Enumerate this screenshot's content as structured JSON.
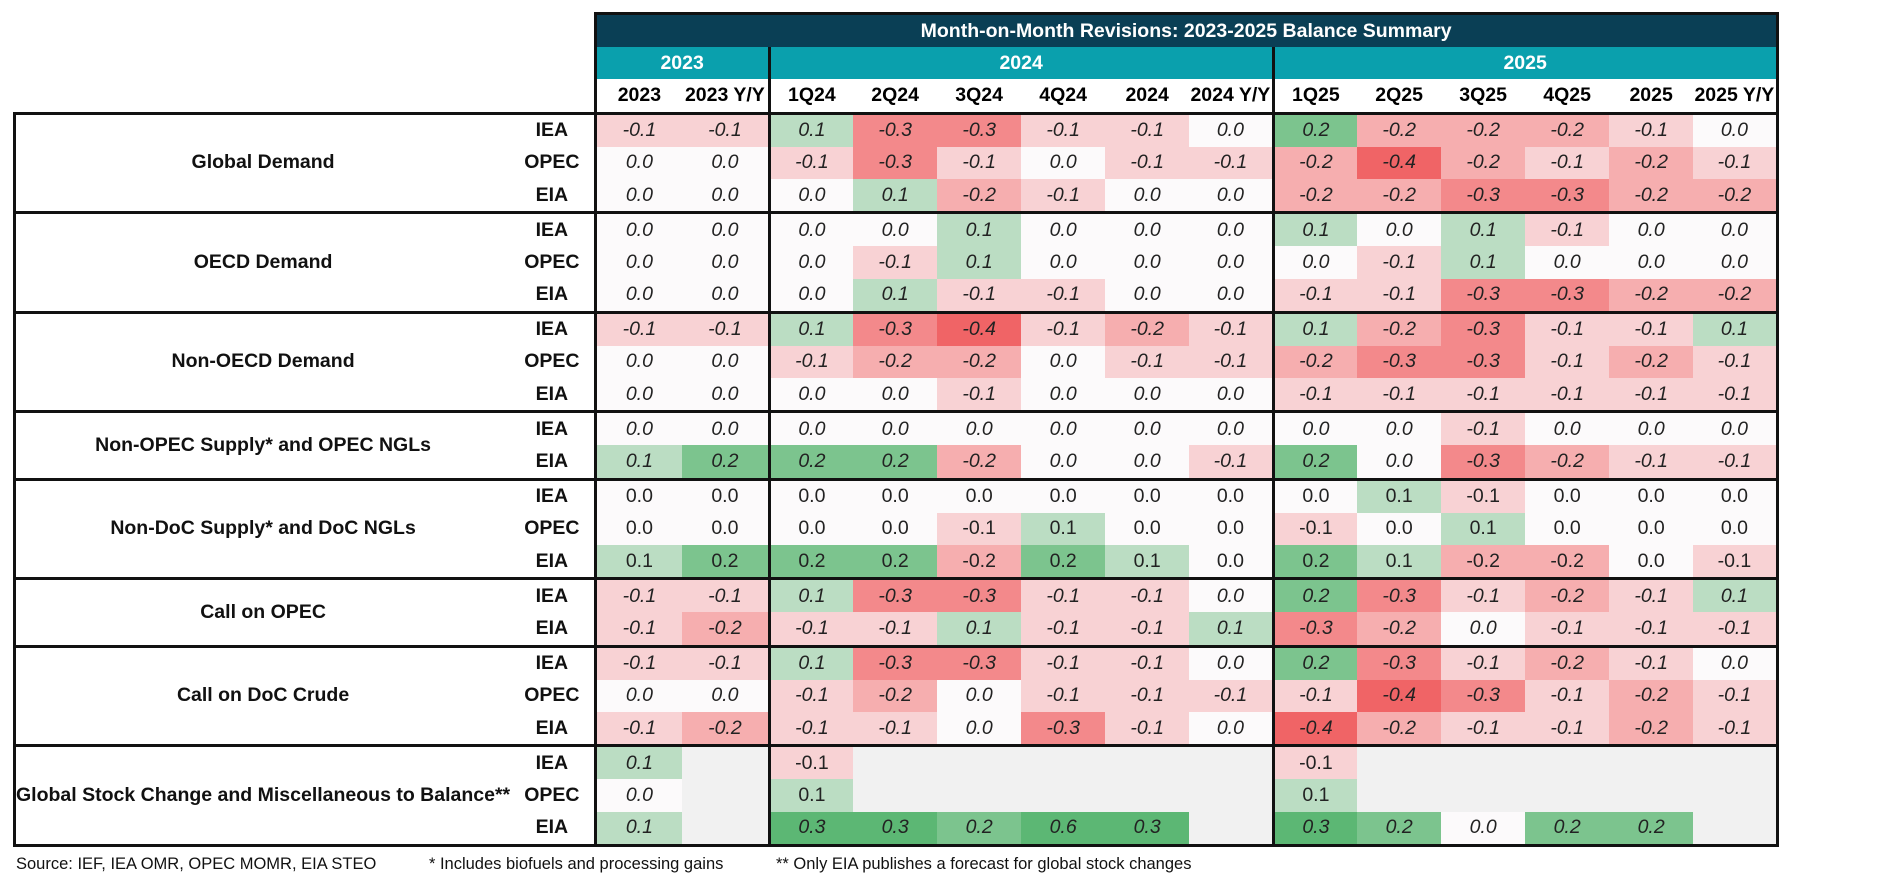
{
  "title": "Month-on-Month Revisions: 2023-2025 Balance Summary",
  "year_groups": [
    "2023",
    "2024",
    "2025"
  ],
  "columns": [
    "2023",
    "2023 Y/Y",
    "1Q24",
    "2Q24",
    "3Q24",
    "4Q24",
    "2024",
    "2024 Y/Y",
    "1Q25",
    "2Q25",
    "3Q25",
    "4Q25",
    "2025",
    "2025 Y/Y"
  ],
  "colors": {
    "title_bg": "#0a3f55",
    "year_bg": "#0aa0ad",
    "positive": "#5cb774",
    "negative": "#f06466",
    "neutral": "#ffffff",
    "empty": "#f1f1f1"
  },
  "metrics": [
    {
      "label": "Global Demand",
      "rows": [
        {
          "source": "IEA",
          "values": [
            "-0.1",
            "-0.1",
            "0.1",
            "-0.3",
            "-0.3",
            "-0.1",
            "-0.1",
            "0.0",
            "0.2",
            "-0.2",
            "-0.2",
            "-0.2",
            "-0.1",
            "0.0"
          ]
        },
        {
          "source": "OPEC",
          "values": [
            "0.0",
            "0.0",
            "-0.1",
            "-0.3",
            "-0.1",
            "0.0",
            "-0.1",
            "-0.1",
            "-0.2",
            "-0.4",
            "-0.2",
            "-0.1",
            "-0.2",
            "-0.1"
          ]
        },
        {
          "source": "EIA",
          "values": [
            "0.0",
            "0.0",
            "0.0",
            "0.1",
            "-0.2",
            "-0.1",
            "0.0",
            "0.0",
            "-0.2",
            "-0.2",
            "-0.3",
            "-0.3",
            "-0.2",
            "-0.2"
          ]
        }
      ]
    },
    {
      "label": "OECD Demand",
      "rows": [
        {
          "source": "IEA",
          "values": [
            "0.0",
            "0.0",
            "0.0",
            "0.0",
            "0.1",
            "0.0",
            "0.0",
            "0.0",
            "0.1",
            "0.0",
            "0.1",
            "-0.1",
            "0.0",
            "0.0"
          ]
        },
        {
          "source": "OPEC",
          "values": [
            "0.0",
            "0.0",
            "0.0",
            "-0.1",
            "0.1",
            "0.0",
            "0.0",
            "0.0",
            "0.0",
            "-0.1",
            "0.1",
            "0.0",
            "0.0",
            "0.0"
          ]
        },
        {
          "source": "EIA",
          "values": [
            "0.0",
            "0.0",
            "0.0",
            "0.1",
            "-0.1",
            "-0.1",
            "0.0",
            "0.0",
            "-0.1",
            "-0.1",
            "-0.3",
            "-0.3",
            "-0.2",
            "-0.2"
          ]
        }
      ]
    },
    {
      "label": "Non-OECD Demand",
      "rows": [
        {
          "source": "IEA",
          "values": [
            "-0.1",
            "-0.1",
            "0.1",
            "-0.3",
            "-0.4",
            "-0.1",
            "-0.2",
            "-0.1",
            "0.1",
            "-0.2",
            "-0.3",
            "-0.1",
            "-0.1",
            "0.1"
          ]
        },
        {
          "source": "OPEC",
          "values": [
            "0.0",
            "0.0",
            "-0.1",
            "-0.2",
            "-0.2",
            "0.0",
            "-0.1",
            "-0.1",
            "-0.2",
            "-0.3",
            "-0.3",
            "-0.1",
            "-0.2",
            "-0.1"
          ]
        },
        {
          "source": "EIA",
          "values": [
            "0.0",
            "0.0",
            "0.0",
            "0.0",
            "-0.1",
            "0.0",
            "0.0",
            "0.0",
            "-0.1",
            "-0.1",
            "-0.1",
            "-0.1",
            "-0.1",
            "-0.1"
          ]
        }
      ]
    },
    {
      "label": "Non-OPEC Supply* and OPEC NGLs",
      "rows": [
        {
          "source": "IEA",
          "values": [
            "0.0",
            "0.0",
            "0.0",
            "0.0",
            "0.0",
            "0.0",
            "0.0",
            "0.0",
            "0.0",
            "0.0",
            "-0.1",
            "0.0",
            "0.0",
            "0.0"
          ]
        },
        {
          "source": "EIA",
          "values": [
            "0.1",
            "0.2",
            "0.2",
            "0.2",
            "-0.2",
            "0.0",
            "0.0",
            "-0.1",
            "0.2",
            "0.0",
            "-0.3",
            "-0.2",
            "-0.1",
            "-0.1"
          ]
        }
      ]
    },
    {
      "label": "Non-DoC Supply* and DoC NGLs",
      "upright": true,
      "rows": [
        {
          "source": "IEA",
          "values": [
            "0.0",
            "0.0",
            "0.0",
            "0.0",
            "0.0",
            "0.0",
            "0.0",
            "0.0",
            "0.0",
            "0.1",
            "-0.1",
            "0.0",
            "0.0",
            "0.0"
          ]
        },
        {
          "source": "OPEC",
          "values": [
            "0.0",
            "0.0",
            "0.0",
            "0.0",
            "-0.1",
            "0.1",
            "0.0",
            "0.0",
            "-0.1",
            "0.0",
            "0.1",
            "0.0",
            "0.0",
            "0.0"
          ]
        },
        {
          "source": "EIA",
          "values": [
            "0.1",
            "0.2",
            "0.2",
            "0.2",
            "-0.2",
            "0.2",
            "0.1",
            "0.0",
            "0.2",
            "0.1",
            "-0.2",
            "-0.2",
            "0.0",
            "-0.1"
          ]
        }
      ]
    },
    {
      "label": "Call on OPEC",
      "rows": [
        {
          "source": "IEA",
          "values": [
            "-0.1",
            "-0.1",
            "0.1",
            "-0.3",
            "-0.3",
            "-0.1",
            "-0.1",
            "0.0",
            "0.2",
            "-0.3",
            "-0.1",
            "-0.2",
            "-0.1",
            "0.1"
          ]
        },
        {
          "source": "EIA",
          "values": [
            "-0.1",
            "-0.2",
            "-0.1",
            "-0.1",
            "0.1",
            "-0.1",
            "-0.1",
            "0.1",
            "-0.3",
            "-0.2",
            "0.0",
            "-0.1",
            "-0.1",
            "-0.1"
          ]
        }
      ]
    },
    {
      "label": "Call on DoC Crude",
      "rows": [
        {
          "source": "IEA",
          "values": [
            "-0.1",
            "-0.1",
            "0.1",
            "-0.3",
            "-0.3",
            "-0.1",
            "-0.1",
            "0.0",
            "0.2",
            "-0.3",
            "-0.1",
            "-0.2",
            "-0.1",
            "0.0"
          ]
        },
        {
          "source": "OPEC",
          "values": [
            "0.0",
            "0.0",
            "-0.1",
            "-0.2",
            "0.0",
            "-0.1",
            "-0.1",
            "-0.1",
            "-0.1",
            "-0.4",
            "-0.3",
            "-0.1",
            "-0.2",
            "-0.1"
          ]
        },
        {
          "source": "EIA",
          "values": [
            "-0.1",
            "-0.2",
            "-0.1",
            "-0.1",
            "0.0",
            "-0.3",
            "-0.1",
            "0.0",
            "-0.4",
            "-0.2",
            "-0.1",
            "-0.1",
            "-0.2",
            "-0.1"
          ]
        }
      ]
    },
    {
      "label": "Global Stock Change and Miscellaneous to Balance**",
      "rows": [
        {
          "source": "IEA",
          "values": [
            "0.1",
            "",
            "-0.1",
            "",
            "",
            "",
            "",
            "",
            "-0.1",
            "",
            "",
            "",
            "",
            ""
          ],
          "upright": [
            2,
            8
          ]
        },
        {
          "source": "OPEC",
          "values": [
            "0.0",
            "",
            "0.1",
            "",
            "",
            "",
            "",
            "",
            "0.1",
            "",
            "",
            "",
            "",
            ""
          ],
          "upright": [
            2,
            8
          ]
        },
        {
          "source": "EIA",
          "values": [
            "0.1",
            "",
            "0.3",
            "0.3",
            "0.2",
            "0.6",
            "0.3",
            "",
            "0.3",
            "0.2",
            "0.0",
            "0.2",
            "0.2",
            ""
          ]
        }
      ]
    }
  ],
  "footer": {
    "source": "Source: IEF, IEA OMR, OPEC MOMR, EIA STEO",
    "note1": "* Includes biofuels and processing gains",
    "note2": "** Only EIA publishes a forecast for global stock changes"
  }
}
